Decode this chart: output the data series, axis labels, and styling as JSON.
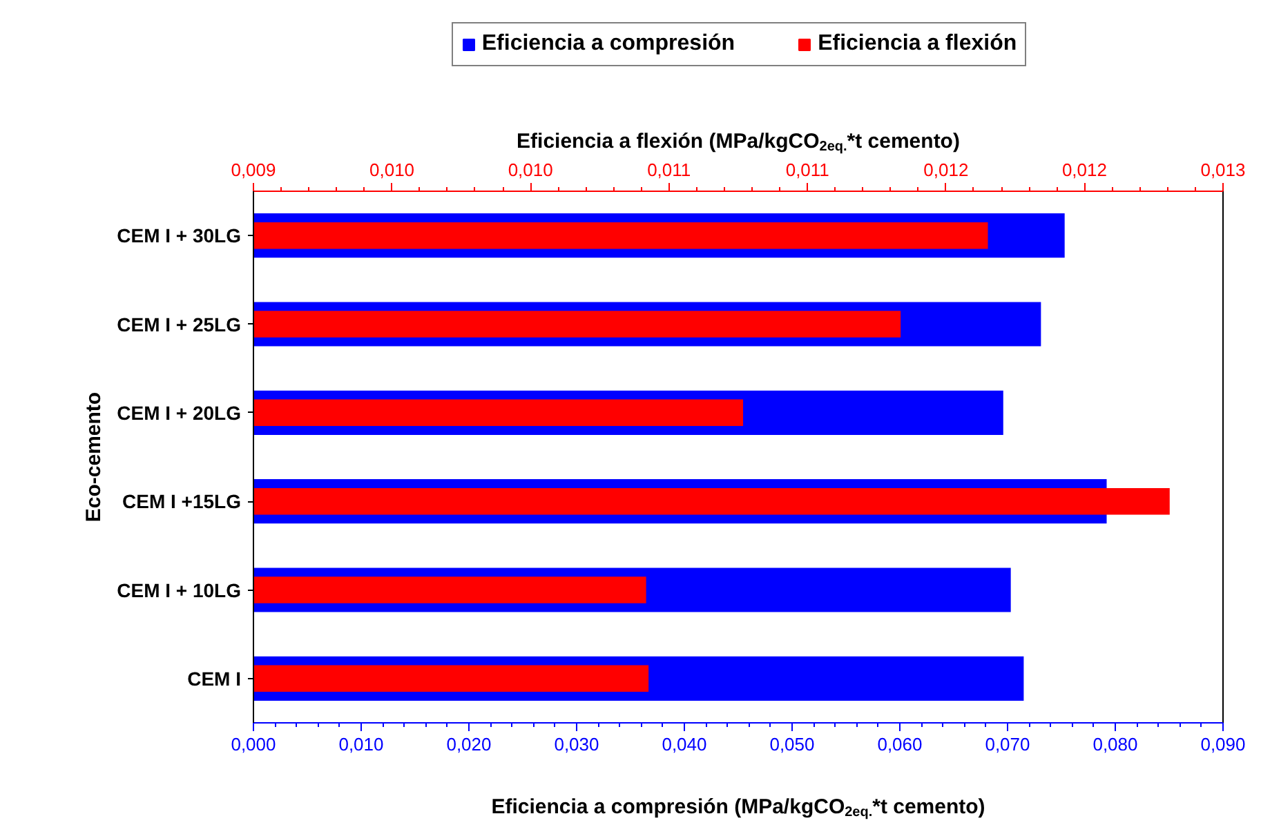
{
  "chart_data": {
    "type": "bar",
    "orientation": "horizontal",
    "xlabel": "Eficiencia a compresión (MPa/kgCO$_{2eq.}$*t cemento)",
    "x2label": "Eficiencia a flexión (MPa/kgCO$_{2eq.}$*t cemento)",
    "ylabel": "Eco-cemento",
    "categories": [
      "CEM I + 30LG",
      "CEM I + 25LG",
      "CEM I + 20LG",
      "CEM I +15LG",
      "CEM I + 10LG",
      "CEM I"
    ],
    "series": [
      {
        "name": "Eficiencia a compresión",
        "color": "#0000ff",
        "values": [
          0.0753,
          0.0731,
          0.0696,
          0.0792,
          0.0703,
          0.0715
        ]
      },
      {
        "name": "Eficiencia a flexión",
        "color": "#ff0000",
        "axis": "x2",
        "values": [
          0.01203,
          0.01167,
          0.01102,
          0.01278,
          0.01062,
          0.01063
        ]
      }
    ],
    "xlim": [
      0,
      0.09
    ],
    "xticks": [
      {
        "value": 0,
        "label": "0,000"
      },
      {
        "value": 0.01,
        "label": "0,010"
      },
      {
        "value": 0.02,
        "label": "0,020"
      },
      {
        "value": 0.03,
        "label": "0,030"
      },
      {
        "value": 0.04,
        "label": "0,040"
      },
      {
        "value": 0.05,
        "label": "0,050"
      },
      {
        "value": 0.06,
        "label": "0,060"
      },
      {
        "value": 0.07,
        "label": "0,070"
      },
      {
        "value": 0.08,
        "label": "0,080"
      },
      {
        "value": 0.09,
        "label": "0,090"
      }
    ],
    "x2lim": [
      0.009,
      0.013
    ],
    "x2ticks": [
      {
        "value": 0.009,
        "label": "0,009"
      },
      {
        "value": 0.0095714,
        "label": "0,010"
      },
      {
        "value": 0.0101429,
        "label": "0,010"
      },
      {
        "value": 0.0107143,
        "label": "0,011"
      },
      {
        "value": 0.0112857,
        "label": "0,011"
      },
      {
        "value": 0.0118571,
        "label": "0,012"
      },
      {
        "value": 0.0124286,
        "label": "0,012"
      },
      {
        "value": 0.013,
        "label": "0,013"
      }
    ],
    "legend": "top",
    "grid": false
  }
}
